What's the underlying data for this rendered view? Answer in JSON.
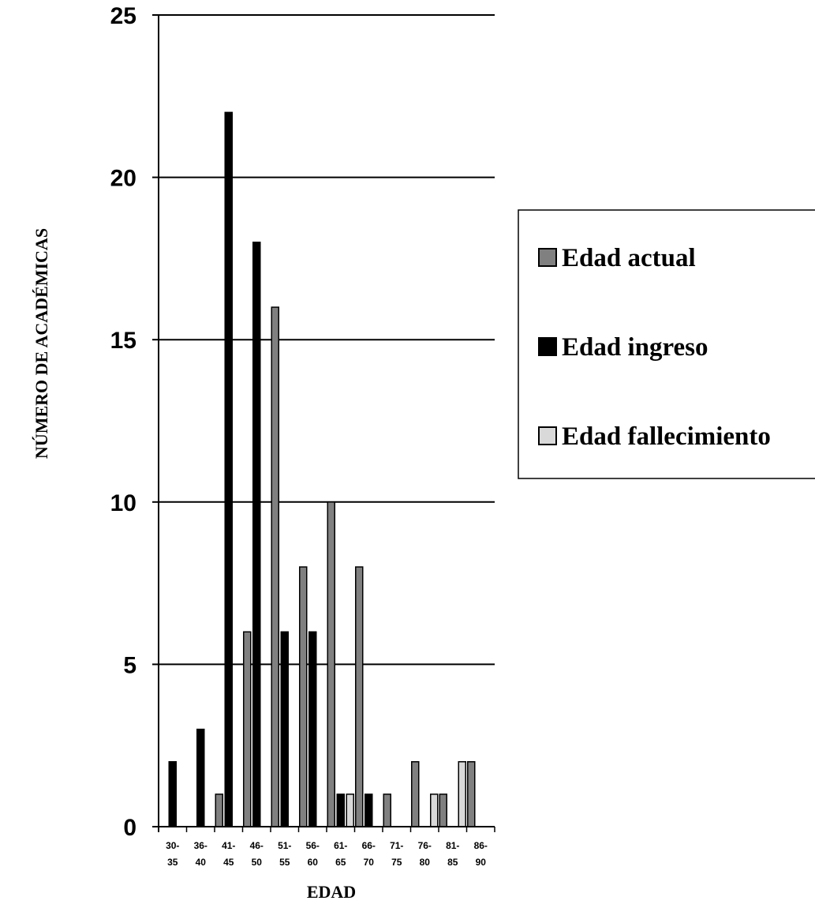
{
  "chart_data": {
    "type": "bar",
    "title": "",
    "xlabel": "EDAD",
    "ylabel": "NÚMERO DE ACADÉMICAS",
    "ylim": [
      0,
      25
    ],
    "yticks": [
      0,
      5,
      10,
      15,
      20,
      25
    ],
    "grid": "horizontal major lines",
    "legend_position": "right",
    "categories": [
      [
        "30-",
        "35"
      ],
      [
        "36-",
        "40"
      ],
      [
        "41-",
        "45"
      ],
      [
        "46-",
        "50"
      ],
      [
        "51-",
        "55"
      ],
      [
        "56-",
        "60"
      ],
      [
        "61-",
        "65"
      ],
      [
        "66-",
        "70"
      ],
      [
        "71-",
        "75"
      ],
      [
        "76-",
        "80"
      ],
      [
        "81-",
        "85"
      ],
      [
        "86-",
        "90"
      ]
    ],
    "series": [
      {
        "name": "Edad actual",
        "color": "#808080",
        "values": [
          0,
          0,
          1,
          6,
          16,
          8,
          10,
          8,
          1,
          2,
          1,
          2
        ]
      },
      {
        "name": "Edad ingreso",
        "color": "#000000",
        "values": [
          2,
          3,
          22,
          18,
          6,
          6,
          1,
          1,
          0,
          0,
          0,
          0
        ]
      },
      {
        "name": "Edad fallecimiento",
        "color": "#d9d9d9",
        "values": [
          0,
          0,
          0,
          0,
          0,
          0,
          1,
          0,
          0,
          1,
          2,
          0
        ]
      }
    ]
  }
}
